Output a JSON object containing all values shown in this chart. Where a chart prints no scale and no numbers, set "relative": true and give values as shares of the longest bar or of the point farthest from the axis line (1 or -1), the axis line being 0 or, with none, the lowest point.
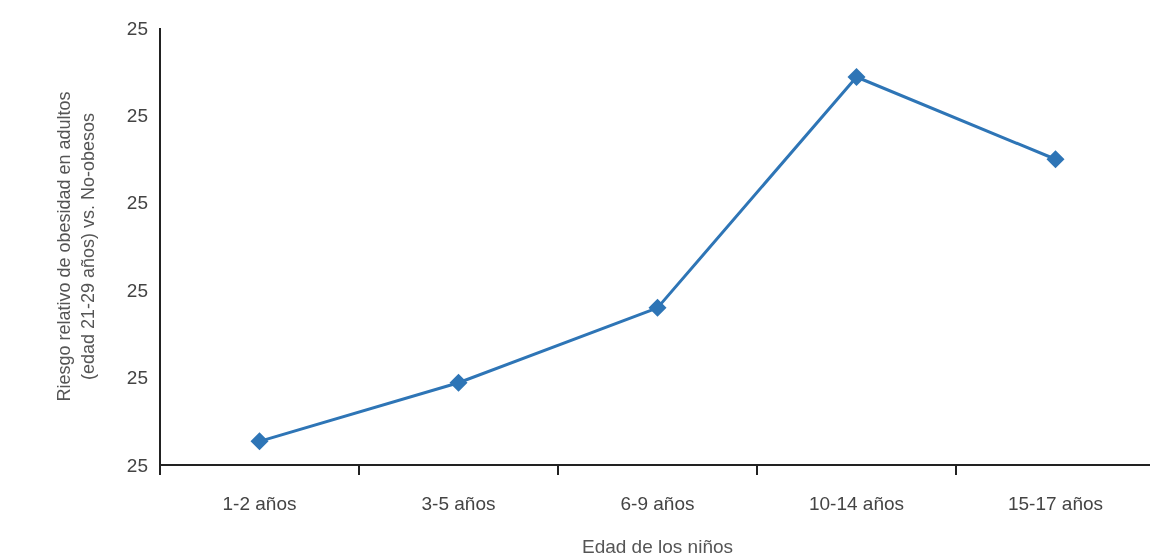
{
  "chart_data": {
    "type": "line",
    "xlabel": "Edad de los niños",
    "ylabel": "Riesgo relativo de obesidad en adultos\n(edad 21-29 años) vs. No-obesos",
    "categories": [
      "1-2 años",
      "3-5 años",
      "6-9 años",
      "10-14 años",
      "15-17 años"
    ],
    "series": [
      {
        "color": "#2e75b6",
        "values": [
          0.061,
          0.212,
          0.405,
          1,
          0.788
        ]
      }
    ],
    "relative": true,
    "annotations": [
      "25",
      "25",
      "25",
      "25",
      "25",
      "25"
    ],
    "marker": "diamond",
    "line_style": "solid"
  }
}
